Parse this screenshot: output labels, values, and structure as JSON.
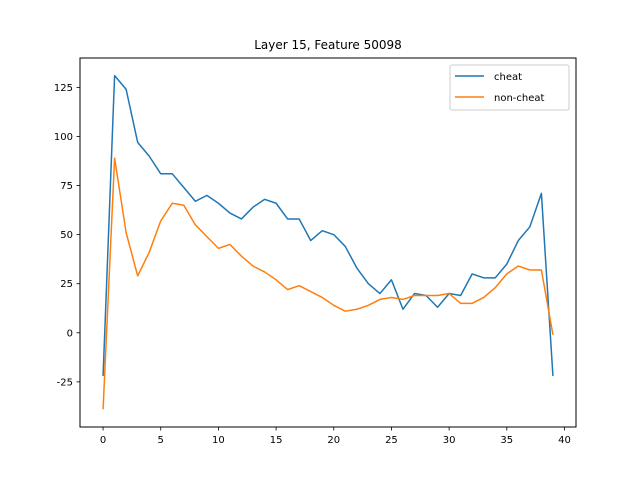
{
  "chart_data": {
    "type": "line",
    "title": "Layer 15, Feature 50098",
    "xlabel": "",
    "ylabel": "",
    "xlim": [
      -2,
      41
    ],
    "ylim": [
      -48,
      140
    ],
    "xticks": [
      0,
      5,
      10,
      15,
      20,
      25,
      30,
      35,
      40
    ],
    "yticks": [
      -25,
      0,
      25,
      50,
      75,
      100,
      125
    ],
    "legend_position": "top-right",
    "grid": false,
    "x": [
      0,
      1,
      2,
      3,
      4,
      5,
      6,
      7,
      8,
      9,
      10,
      11,
      12,
      13,
      14,
      15,
      16,
      17,
      18,
      19,
      20,
      21,
      22,
      23,
      24,
      25,
      26,
      27,
      28,
      29,
      30,
      31,
      32,
      33,
      34,
      35,
      36,
      37,
      38,
      39
    ],
    "series": [
      {
        "name": "cheat",
        "color": "#1f77b4",
        "values": [
          -22,
          131,
          124,
          97,
          90,
          81,
          81,
          74,
          67,
          70,
          66,
          61,
          58,
          64,
          68,
          66,
          58,
          58,
          47,
          52,
          50,
          44,
          33,
          25,
          20,
          27,
          12,
          20,
          19,
          13,
          20,
          19,
          30,
          28,
          28,
          35,
          47,
          54,
          71,
          -22
        ]
      },
      {
        "name": "non-cheat",
        "color": "#ff7f0e",
        "values": [
          -39,
          89,
          51,
          29,
          41,
          57,
          66,
          65,
          55,
          49,
          43,
          45,
          39,
          34,
          31,
          27,
          22,
          24,
          21,
          18,
          14,
          11,
          12,
          14,
          17,
          18,
          17,
          19,
          19,
          19,
          20,
          15,
          15,
          18,
          23,
          30,
          34,
          32,
          32,
          -1
        ]
      }
    ]
  }
}
